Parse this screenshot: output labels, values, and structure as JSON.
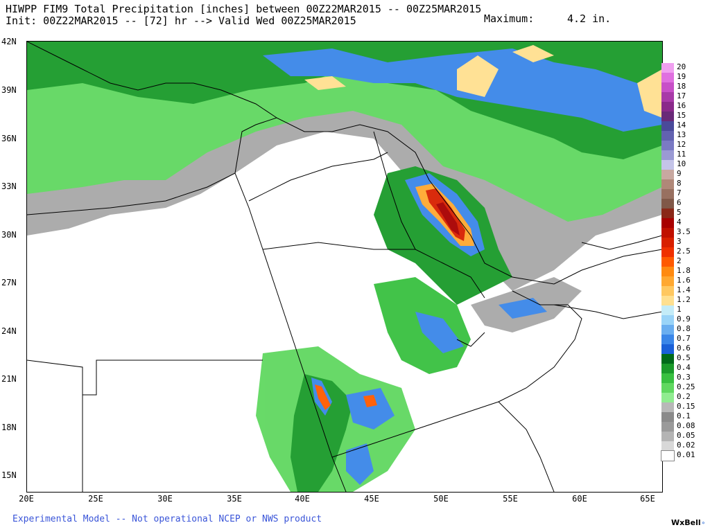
{
  "header": {
    "title_line1": "HIWPP FIM9 Total Precipitation [inches] between 00Z22MAR2015 -- 00Z25MAR2015",
    "title_line2": "Init: 00Z22MAR2015 -- [72] hr --> Valid Wed 00Z25MAR2015",
    "maximum_label": "Maximum:",
    "maximum_value": "4.2 in."
  },
  "map": {
    "lat_labels": [
      "42N",
      "39N",
      "36N",
      "33N",
      "30N",
      "27N",
      "24N",
      "21N",
      "18N",
      "15N"
    ],
    "lon_labels": [
      "20E",
      "25E",
      "30E",
      "35E",
      "40E",
      "45E",
      "50E",
      "55E",
      "60E",
      "65E"
    ]
  },
  "legend": {
    "levels": [
      "20",
      "19",
      "18",
      "17",
      "16",
      "15",
      "14",
      "13",
      "12",
      "11",
      "10",
      "9",
      "8",
      "7",
      "6",
      "5",
      "4",
      "3.5",
      "3",
      "2.5",
      "2",
      "1.8",
      "1.6",
      "1.4",
      "1.2",
      "1",
      "0.9",
      "0.8",
      "0.7",
      "0.6",
      "0.5",
      "0.4",
      "0.3",
      "0.25",
      "0.2",
      "0.15",
      "0.1",
      "0.08",
      "0.05",
      "0.02",
      "0.01"
    ],
    "colors": [
      "#f0a0f0",
      "#e070e0",
      "#c850c8",
      "#a83aa8",
      "#8a2a8a",
      "#6a2a78",
      "#4a4a9a",
      "#6262b0",
      "#7a7ac4",
      "#9a9ad4",
      "#c4c4e8",
      "#c8a8a0",
      "#b08878",
      "#987060",
      "#805848",
      "#8a2818",
      "#a80000",
      "#c01000",
      "#d82000",
      "#f03000",
      "#ff5a00",
      "#ff8a10",
      "#ffa830",
      "#ffc860",
      "#ffe090",
      "#c4ecf8",
      "#9ad4f8",
      "#6aaef0",
      "#3a86e8",
      "#1a60d8",
      "#006a1a",
      "#1a9a2a",
      "#38c040",
      "#60d860",
      "#90ec90",
      "#b8b8b8",
      "#8a8a8a",
      "#9a9a9a",
      "#b4b4b4",
      "#d8d8d8",
      "#ffffff"
    ]
  },
  "footer": {
    "disclaimer": "Experimental Model -- Not operational NCEP or NWS product",
    "brand": "WxBell"
  }
}
